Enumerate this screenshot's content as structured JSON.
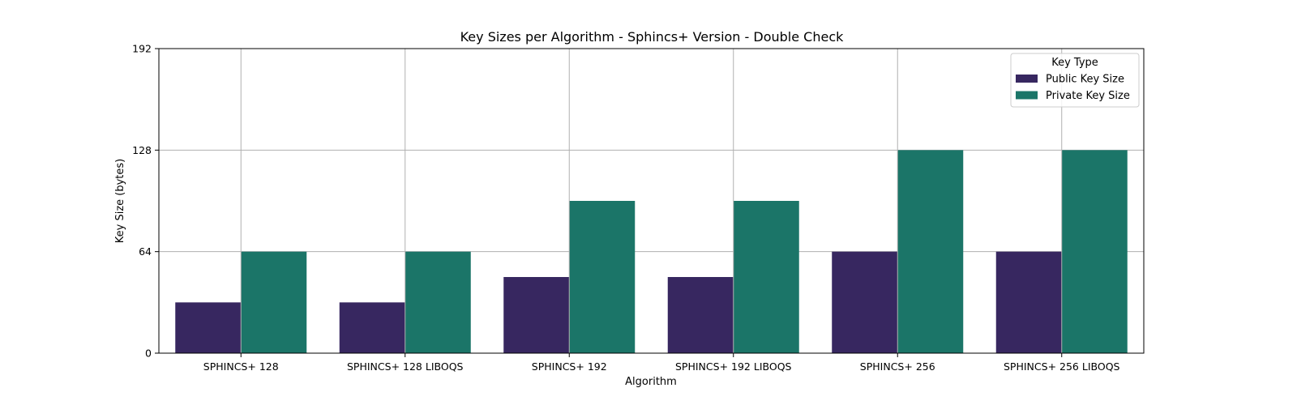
{
  "chart_data": {
    "type": "bar",
    "title": "Key Sizes per Algorithm - Sphincs+ Version - Double Check",
    "xlabel": "Algorithm",
    "ylabel": "Key Size (bytes)",
    "categories": [
      "SPHINCS+ 128",
      "SPHINCS+ 128 LIBOQS",
      "SPHINCS+ 192",
      "SPHINCS+ 192 LIBOQS",
      "SPHINCS+ 256",
      "SPHINCS+ 256 LIBOQS"
    ],
    "series": [
      {
        "name": "Public Key Size",
        "values": [
          32,
          32,
          48,
          48,
          64,
          64
        ],
        "color": "#372760"
      },
      {
        "name": "Private Key Size",
        "values": [
          64,
          64,
          96,
          96,
          128,
          128
        ],
        "color": "#1b7568"
      }
    ],
    "ylim": [
      0,
      192
    ],
    "yticks": [
      0,
      64,
      128,
      192
    ],
    "grid": true,
    "legend": {
      "title": "Key Type",
      "placement": "top-right"
    }
  }
}
